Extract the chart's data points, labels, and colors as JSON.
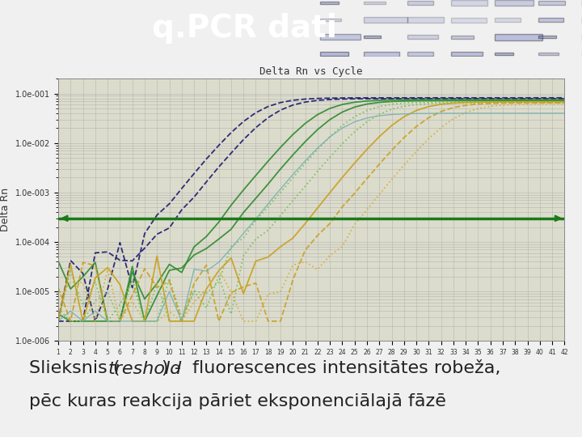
{
  "title": "q.PCR dati",
  "title_bg_color": "#2d3494",
  "title_text_color": "#ffffff",
  "title_fontsize": 28,
  "chart_title": "Delta Rn vs Cycle",
  "ylabel": "Delta Rn",
  "threshold_color": "#1a7a1a",
  "threshold_linewidth": 2.5,
  "body_bg_color": "#f0f0f0",
  "text_line1_normal": "Slieksnis (",
  "text_line1_italic": "treshold",
  "text_line1_end": ") -  fluorescences intensitātes robeža,",
  "text_line2": "pēc kuras reakcija pāriet eksponenciālajā fāzē",
  "text_fontsize": 16,
  "panel_bg": "#dcdccc"
}
